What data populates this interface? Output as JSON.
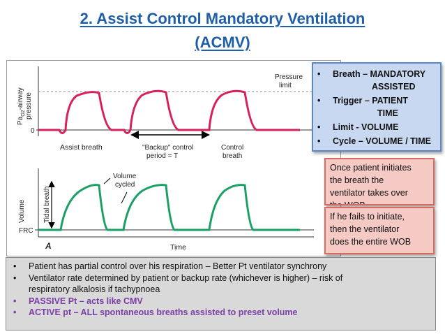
{
  "title": {
    "line1": "2. Assist Control Mandatory Ventilation",
    "line2": "(ACMV)"
  },
  "figure": {
    "top_ylabel_line1": "Pa",
    "top_ylabel_sub": "O2",
    "top_ylabel_rest": "-airway",
    "top_ylabel_line2": "pressure",
    "top_zero": "0",
    "pressure_limit_1": "Pressure",
    "pressure_limit_2": "limit",
    "assist_breath": "Assist breath",
    "backup_1": "\"Backup\" control",
    "backup_2": "period = T",
    "control_1": "Control",
    "control_2": "breath",
    "volume_cycled_1": "Volume",
    "volume_cycled_2": "cycled",
    "volume_label": "Volume",
    "tidal_breath": "Tidal breath",
    "frc": "FRC",
    "panel_letter": "A",
    "time_label": "Time"
  },
  "bluebox": {
    "items": [
      {
        "bullet": "•",
        "line1": "Breath – MANDATORY",
        "line2": "ASSISTED"
      },
      {
        "bullet": "•",
        "line1": "Trigger – PATIENT",
        "line2": "TIME"
      },
      {
        "bullet": "•",
        "line1": "Limit - VOLUME",
        "line2": ""
      },
      {
        "bullet": "•",
        "line1": "Cycle – VOLUME / TIME",
        "line2": ""
      }
    ]
  },
  "pink1": {
    "line1": "Once patient initiates",
    "line2": "the breath the",
    "line3": "ventilator takes over",
    "line4": "the WOB"
  },
  "pink2": {
    "line1": "If he fails to initiate,",
    "line2": "then the  ventilator",
    "line3": "does the entire WOB"
  },
  "bottom": {
    "b1": "Patient has partial control over his respiration – Better Pt ventilator synchrony",
    "b2a": "Ventilator rate determined by patient or backup rate (whichever is higher) – risk of",
    "b2b": "respiratory alkalosis if tachypnoea",
    "b3": "PASSIVE Pt – acts like CMV",
    "b4": "ACTIVE pt – ALL spontaneous breaths assisted to preset volume"
  },
  "colors": {
    "title": "#1f5fa8",
    "curve": "#d6215b",
    "volume_curve": "#1aa064",
    "purple": "#7a3fa6"
  }
}
